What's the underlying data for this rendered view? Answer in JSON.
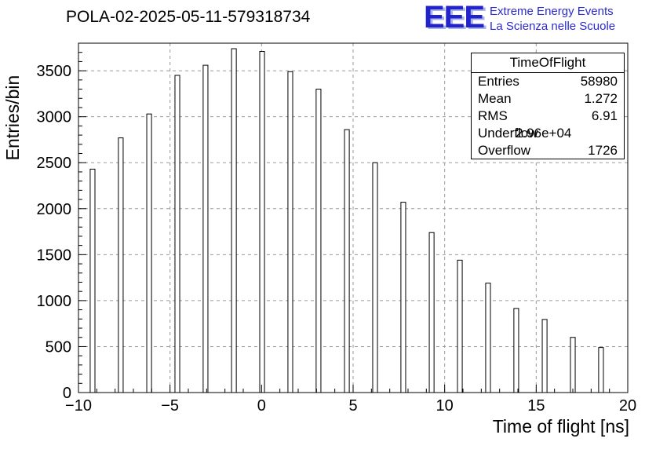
{
  "header": {
    "title": "POLA-02-2025-05-11-579318734",
    "logo": {
      "acronym": "EEE",
      "line1": "Extreme Energy Events",
      "line2": "La Scienza nelle Scuole",
      "color": "#2a2ad2"
    }
  },
  "stats_box": {
    "title": "TimeOfFlight",
    "rows": [
      {
        "label": "Entries",
        "value": "58980"
      },
      {
        "label": "Mean",
        "value": "1.272"
      },
      {
        "label": "RMS",
        "value": "6.91"
      },
      {
        "label": "Underflow",
        "value": "2.96e+04"
      },
      {
        "label": "Overflow",
        "value": "1726"
      }
    ]
  },
  "chart_data": {
    "type": "bar",
    "title": "POLA-02-2025-05-11-579318734",
    "xlabel": "Time of flight [ns]",
    "ylabel": "Entries/bin",
    "xlim": [
      -10,
      20
    ],
    "ylim": [
      0,
      3800
    ],
    "x_ticks": [
      -10,
      -5,
      0,
      5,
      10,
      15,
      20
    ],
    "x_tick_labels": [
      "−10",
      "−5",
      "0",
      "5",
      "10",
      "15",
      "20"
    ],
    "y_ticks": [
      0,
      500,
      1000,
      1500,
      2000,
      2500,
      3000,
      3500
    ],
    "y_tick_labels": [
      "0",
      "500",
      "1000",
      "1500",
      "2000",
      "2500",
      "3000",
      "3500"
    ],
    "x_minor_step": 1,
    "y_minor_step": 100,
    "grid": "dashed",
    "grid_color": "#9a9a9a",
    "bar_stroke": "#000000",
    "bar_fill": "#ffffff",
    "bar_width_ns": 0.26,
    "x": [
      -9.23,
      -7.69,
      -6.14,
      -4.6,
      -3.06,
      -1.51,
      0.03,
      1.57,
      3.11,
      4.66,
      6.2,
      7.74,
      9.29,
      10.83,
      12.37,
      13.91,
      15.46,
      17.0,
      18.54
    ],
    "values": [
      2430,
      2770,
      3030,
      3450,
      3560,
      3740,
      3710,
      3490,
      3300,
      2860,
      2500,
      2070,
      1740,
      1440,
      1190,
      915,
      795,
      600,
      490
    ]
  }
}
